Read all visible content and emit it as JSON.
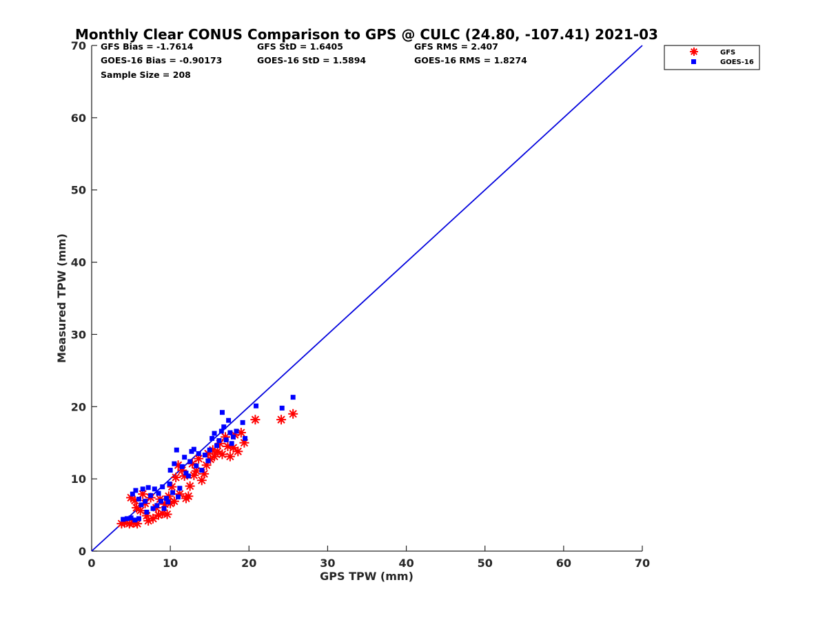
{
  "chart_data": {
    "type": "scatter",
    "title": "Monthly Clear CONUS Comparison to GPS @ CULC (24.80, -107.41) 2021-03",
    "xlabel": "GPS TPW (mm)",
    "ylabel": "Measured TPW (mm)",
    "xlim": [
      0,
      70
    ],
    "ylim": [
      0,
      70
    ],
    "xticks": [
      "0",
      "10",
      "20",
      "30",
      "40",
      "50",
      "60",
      "70"
    ],
    "yticks": [
      "0",
      "10",
      "20",
      "30",
      "40",
      "50",
      "60",
      "70"
    ],
    "grid": false,
    "legend_position": "top-right-outside",
    "stats": {
      "gfs_bias": "GFS Bias = -1.7614",
      "gfs_std": "GFS StD = 1.6405",
      "gfs_rms": "GFS RMS = 2.407",
      "goes_bias": "GOES-16 Bias = -0.90173",
      "goes_std": "GOES-16 StD = 1.5894",
      "goes_rms": "GOES-16 RMS = 1.8274",
      "sample_size": "Sample Size = 208"
    },
    "reference_line": {
      "x": [
        0,
        70
      ],
      "y": [
        0,
        70
      ],
      "color": "#0000dd"
    },
    "series": [
      {
        "name": "GFS",
        "marker": "asterisk",
        "color": "#ff0000",
        "points": [
          [
            3.8,
            3.8
          ],
          [
            4.2,
            3.9
          ],
          [
            4.8,
            3.8
          ],
          [
            5.3,
            3.9
          ],
          [
            5.8,
            3.8
          ],
          [
            5.0,
            7.4
          ],
          [
            5.5,
            7.0
          ],
          [
            5.7,
            6.0
          ],
          [
            6.2,
            5.6
          ],
          [
            6.5,
            7.9
          ],
          [
            6.8,
            6.6
          ],
          [
            7.0,
            4.9
          ],
          [
            7.2,
            4.2
          ],
          [
            7.5,
            7.4
          ],
          [
            7.8,
            4.5
          ],
          [
            8.2,
            6.0
          ],
          [
            8.5,
            5.0
          ],
          [
            8.7,
            7.2
          ],
          [
            9.0,
            5.2
          ],
          [
            9.3,
            6.5
          ],
          [
            9.6,
            5.1
          ],
          [
            9.8,
            7.6
          ],
          [
            10.0,
            6.6
          ],
          [
            10.2,
            8.9
          ],
          [
            10.5,
            6.9
          ],
          [
            10.7,
            10.2
          ],
          [
            11.0,
            11.9
          ],
          [
            11.2,
            7.9
          ],
          [
            11.5,
            11.2
          ],
          [
            11.8,
            10.4
          ],
          [
            12.0,
            7.3
          ],
          [
            12.3,
            7.6
          ],
          [
            12.5,
            9.0
          ],
          [
            12.8,
            12.1
          ],
          [
            13.0,
            10.5
          ],
          [
            13.3,
            11.1
          ],
          [
            13.6,
            12.8
          ],
          [
            14.0,
            9.8
          ],
          [
            14.3,
            10.7
          ],
          [
            14.6,
            11.9
          ],
          [
            14.8,
            13.5
          ],
          [
            15.1,
            12.7
          ],
          [
            15.4,
            14.0
          ],
          [
            15.6,
            13.1
          ],
          [
            16.0,
            13.8
          ],
          [
            16.3,
            14.9
          ],
          [
            16.6,
            13.4
          ],
          [
            17.0,
            15.8
          ],
          [
            17.3,
            14.5
          ],
          [
            17.6,
            13.1
          ],
          [
            18.0,
            14.3
          ],
          [
            18.2,
            16.1
          ],
          [
            18.6,
            13.8
          ],
          [
            19.0,
            16.4
          ],
          [
            19.4,
            15.0
          ],
          [
            20.8,
            18.2
          ],
          [
            24.1,
            18.2
          ],
          [
            25.6,
            19.0
          ]
        ]
      },
      {
        "name": "GOES-16",
        "marker": "square",
        "color": "#0000ff",
        "points": [
          [
            4.0,
            4.4
          ],
          [
            4.5,
            4.5
          ],
          [
            5.0,
            4.6
          ],
          [
            5.5,
            4.3
          ],
          [
            6.0,
            4.5
          ],
          [
            5.2,
            7.9
          ],
          [
            5.6,
            8.4
          ],
          [
            6.0,
            7.2
          ],
          [
            6.3,
            6.4
          ],
          [
            6.5,
            8.6
          ],
          [
            6.8,
            6.9
          ],
          [
            7.0,
            5.4
          ],
          [
            7.2,
            8.8
          ],
          [
            7.5,
            7.7
          ],
          [
            7.8,
            5.9
          ],
          [
            8.0,
            8.6
          ],
          [
            8.3,
            6.3
          ],
          [
            8.5,
            8.0
          ],
          [
            8.8,
            6.9
          ],
          [
            9.0,
            8.9
          ],
          [
            9.2,
            5.9
          ],
          [
            9.5,
            7.3
          ],
          [
            9.7,
            6.8
          ],
          [
            9.9,
            9.3
          ],
          [
            10.0,
            11.2
          ],
          [
            10.3,
            8.1
          ],
          [
            10.5,
            12.1
          ],
          [
            10.8,
            14.0
          ],
          [
            11.0,
            7.5
          ],
          [
            11.2,
            8.7
          ],
          [
            11.5,
            11.7
          ],
          [
            11.8,
            13.0
          ],
          [
            12.0,
            10.8
          ],
          [
            12.3,
            10.4
          ],
          [
            12.5,
            12.4
          ],
          [
            12.7,
            13.8
          ],
          [
            13.0,
            14.1
          ],
          [
            13.3,
            11.8
          ],
          [
            13.6,
            13.5
          ],
          [
            14.0,
            11.2
          ],
          [
            14.4,
            13.3
          ],
          [
            14.8,
            12.5
          ],
          [
            15.0,
            14.0
          ],
          [
            15.3,
            15.6
          ],
          [
            15.6,
            16.3
          ],
          [
            15.9,
            14.6
          ],
          [
            16.2,
            15.3
          ],
          [
            16.5,
            16.6
          ],
          [
            16.6,
            19.2
          ],
          [
            16.8,
            17.2
          ],
          [
            17.1,
            15.4
          ],
          [
            17.4,
            18.1
          ],
          [
            17.6,
            16.4
          ],
          [
            17.8,
            14.9
          ],
          [
            18.0,
            15.8
          ],
          [
            18.4,
            16.6
          ],
          [
            19.2,
            17.8
          ],
          [
            19.5,
            15.6
          ],
          [
            20.9,
            20.1
          ],
          [
            24.2,
            19.8
          ],
          [
            25.6,
            21.3
          ]
        ]
      }
    ]
  }
}
